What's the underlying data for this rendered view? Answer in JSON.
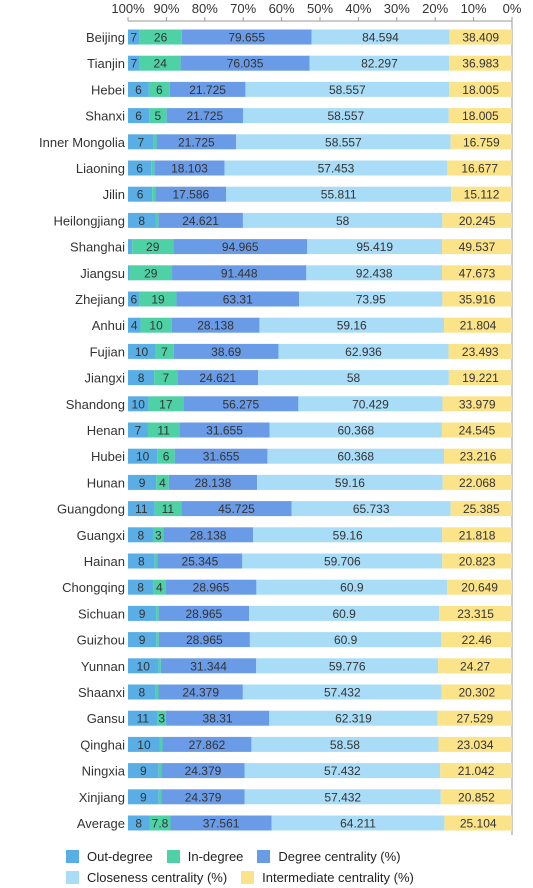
{
  "chart_data": {
    "type": "bar",
    "stacked": true,
    "orientation": "horizontal",
    "x_axis_position": "top",
    "x_axis_reversed": true,
    "x_ticks": [
      "100%",
      "90%",
      "80%",
      "70%",
      "60%",
      "50%",
      "40%",
      "30%",
      "20%",
      "10%",
      "0%"
    ],
    "legend_position": "bottom",
    "categories": [
      "Beijing",
      "Tianjin",
      "Hebei",
      "Shanxi",
      "Inner Mongolia",
      "Liaoning",
      "Jilin",
      "Heilongjiang",
      "Shanghai",
      "Jiangsu",
      "Zhejiang",
      "Anhui",
      "Fujian",
      "Jiangxi",
      "Shandong",
      "Henan",
      "Hubei",
      "Hunan",
      "Guangdong",
      "Guangxi",
      "Hainan",
      "Chongqing",
      "Sichuan",
      "Guizhou",
      "Yunnan",
      "Shaanxi",
      "Gansu",
      "Qinghai",
      "Ningxia",
      "Xinjiang",
      "Average"
    ],
    "series": [
      {
        "name": "Out-degree",
        "color": "#5aaee6",
        "values": [
          7,
          7,
          6,
          6,
          7,
          6,
          6,
          8,
          3,
          1,
          6,
          4,
          10,
          8,
          10,
          7,
          10,
          9,
          11,
          8,
          8,
          8,
          9,
          9,
          10,
          8,
          11,
          10,
          9,
          9,
          8
        ],
        "labels": [
          "7",
          "7",
          "6",
          "6",
          "7",
          "6",
          "6",
          "8",
          "",
          "",
          "6",
          "4",
          "10",
          "8",
          "10",
          "7",
          "10",
          "9",
          "11",
          "8",
          "8",
          "8",
          "9",
          "9",
          "10",
          "8",
          "11",
          "10",
          "9",
          "9",
          "8"
        ]
      },
      {
        "name": "In-degree",
        "color": "#4fd1a6",
        "values": [
          26,
          24,
          6,
          5,
          0.8,
          0.8,
          0.8,
          0.8,
          29,
          29,
          19,
          10,
          7,
          7,
          17,
          11,
          6,
          4,
          11,
          3,
          0.8,
          4,
          0.8,
          0.8,
          0.8,
          0.8,
          3,
          0.8,
          0.8,
          0.8,
          7.8
        ],
        "labels": [
          "26",
          "24",
          "6",
          "5",
          "",
          "",
          "",
          "",
          "29",
          "29",
          "19",
          "10",
          "7",
          "7",
          "17",
          "11",
          "6",
          "4",
          "11",
          "3",
          "",
          "4",
          "",
          "",
          "",
          "",
          "3",
          "",
          "",
          "",
          "7.8"
        ]
      },
      {
        "name": "Degree centrality (%)",
        "color": "#6a9be6",
        "values": [
          79.655,
          76.035,
          21.725,
          21.725,
          21.725,
          18.103,
          17.586,
          24.621,
          94.965,
          91.448,
          63.31,
          28.138,
          38.69,
          24.621,
          56.275,
          31.655,
          31.655,
          28.138,
          45.725,
          28.138,
          25.345,
          28.965,
          28.965,
          28.965,
          31.344,
          24.379,
          38.31,
          27.862,
          24.379,
          24.379,
          37.561
        ]
      },
      {
        "name": "Closeness centrality (%)",
        "color": "#a9dcf7",
        "values": [
          84.594,
          82.297,
          58.557,
          58.557,
          58.557,
          57.453,
          55.811,
          58,
          95.419,
          92.438,
          73.95,
          59.16,
          62.936,
          58,
          70.429,
          60.368,
          60.368,
          59.16,
          65.733,
          59.16,
          59.706,
          60.9,
          60.9,
          60.9,
          59.776,
          57.432,
          62.319,
          58.58,
          57.432,
          57.432,
          64.211
        ]
      },
      {
        "name": "Intermediate centrality (%)",
        "color": "#fbe38a",
        "values": [
          38.409,
          36.983,
          18.005,
          18.005,
          16.759,
          16.677,
          15.112,
          20.245,
          49.537,
          47.673,
          35.916,
          21.804,
          23.493,
          19.221,
          33.979,
          24.545,
          23.216,
          22.068,
          25.385,
          21.818,
          20.823,
          20.649,
          23.315,
          22.46,
          24.27,
          20.302,
          27.529,
          23.034,
          21.042,
          20.852,
          25.104
        ]
      }
    ]
  }
}
